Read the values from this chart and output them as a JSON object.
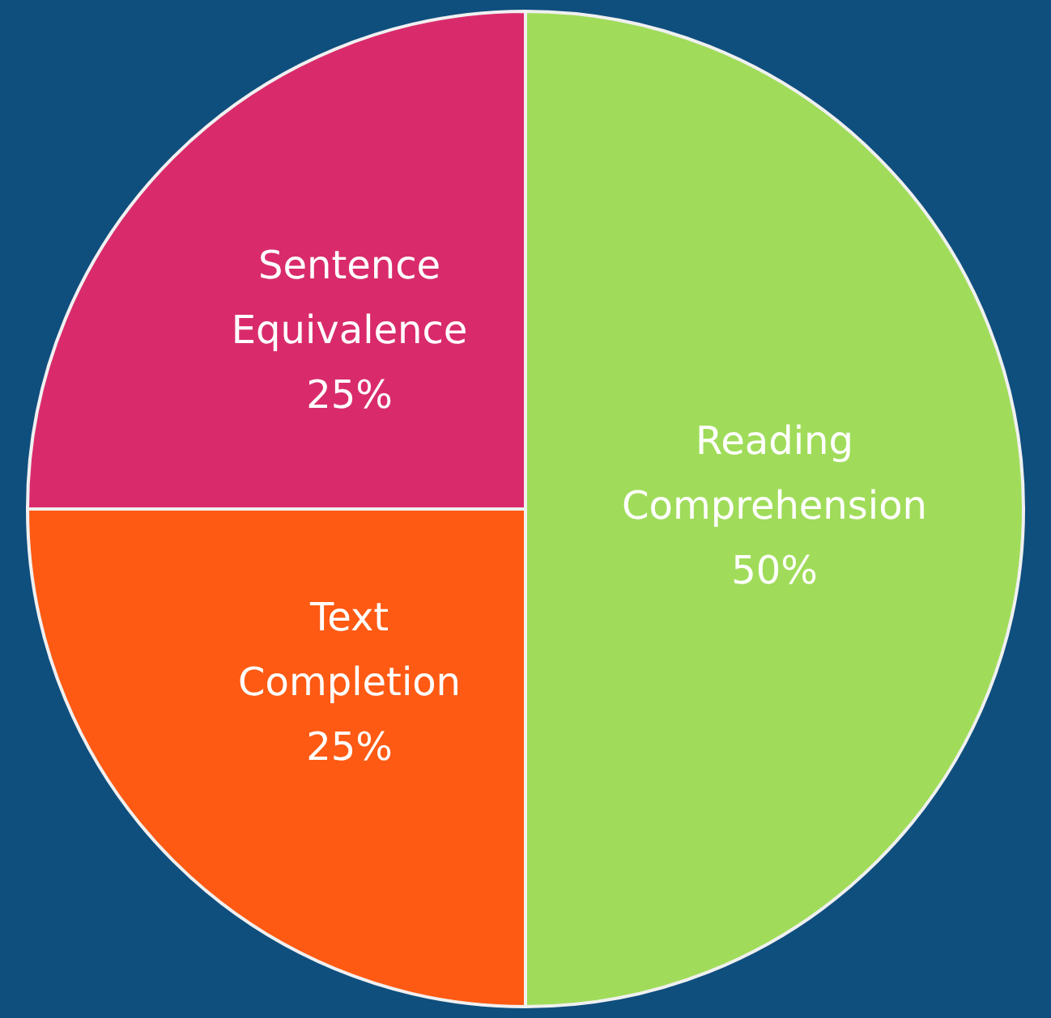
{
  "chart_data": {
    "type": "pie",
    "categories": [
      "Reading Comprehension",
      "Text Completion",
      "Sentence Equivalence"
    ],
    "values": [
      50,
      25,
      25
    ],
    "colors": [
      "#a0dc5a",
      "#fe5a13",
      "#d92b6b"
    ],
    "value_labels": [
      "50%",
      "25%",
      "25%"
    ],
    "legend": false
  }
}
